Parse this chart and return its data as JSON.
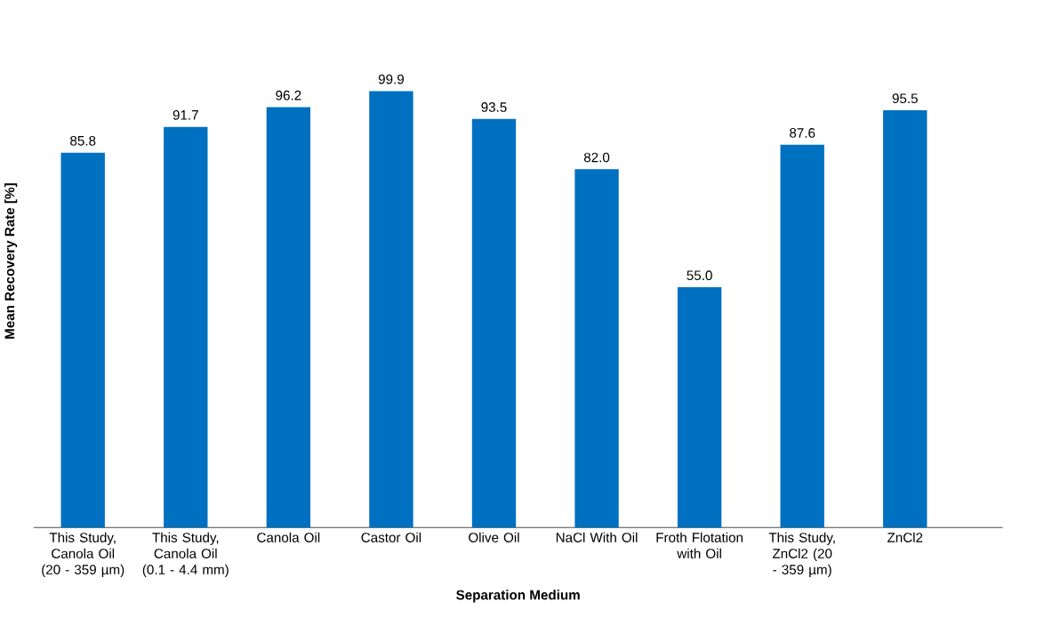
{
  "chart_data": {
    "type": "bar",
    "xlabel": "Separation Medium",
    "ylabel": "Mean Recovery Rate [%]",
    "categories": [
      "This Study, Canola Oil (20 - 359 µm)",
      "This Study, Canola Oil (0.1 - 4.4 mm)",
      "Canola Oil",
      "Castor Oil",
      "Olive Oil",
      "NaCl With Oil",
      "Froth Flotation with Oil",
      "This Study, ZnCl2 (20 - 359 µm)",
      "ZnCl2"
    ],
    "values": [
      85.8,
      91.7,
      96.2,
      99.9,
      93.5,
      82.0,
      55.0,
      87.6,
      95.5
    ],
    "value_labels": [
      "85.8",
      "91.7",
      "96.2",
      "99.9",
      "93.5",
      "82.0",
      "55.0",
      "87.6",
      "95.5"
    ],
    "color": "#0070c0"
  }
}
